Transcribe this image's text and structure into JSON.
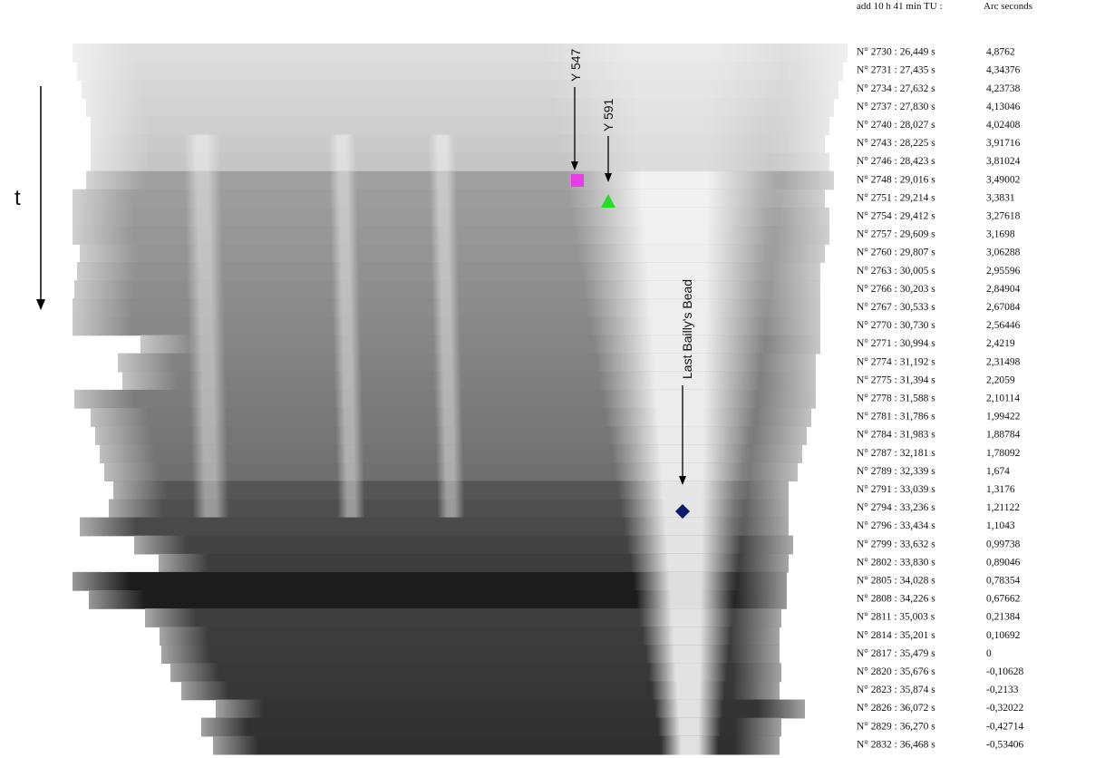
{
  "header": {
    "time_label": "add 10 h 41 min TU :",
    "arc_label": "Arc seconds"
  },
  "annotations": {
    "time_axis": "t",
    "labels": [
      "Y 547",
      "Y 591",
      "Last Bailly's Bead"
    ]
  },
  "table": {
    "rows": [
      [
        "N° 2730 : 26,449 s",
        "4,8762"
      ],
      [
        "N° 2731 : 27,435 s",
        "4,34376"
      ],
      [
        "N° 2734 : 27,632 s",
        "4,23738"
      ],
      [
        "N° 2737 : 27,830 s",
        "4,13046"
      ],
      [
        "N° 2740 : 28,027 s",
        "4,02408"
      ],
      [
        "N° 2743 : 28,225 s",
        "3,91716"
      ],
      [
        "N° 2746 : 28,423 s",
        "3,81024"
      ],
      [
        "N° 2748 : 29,016 s",
        "3,49002"
      ],
      [
        "N° 2751 : 29,214 s",
        "3,3831"
      ],
      [
        "N° 2754 : 29,412 s",
        "3,27618"
      ],
      [
        "N° 2757 : 29,609 s",
        "3,1698"
      ],
      [
        "N° 2760 : 29,807 s",
        "3,06288"
      ],
      [
        "N° 2763 : 30,005 s",
        "2,95596"
      ],
      [
        "N° 2766 : 30,203 s",
        "2,84904"
      ],
      [
        "N° 2767 : 30,533 s",
        "2,67084"
      ],
      [
        "N° 2770 : 30,730 s",
        "2,56446"
      ],
      [
        "N° 2771 : 30,994 s",
        "2,4219"
      ],
      [
        "N° 2774 : 31,192 s",
        "2,31498"
      ],
      [
        "N° 2775 : 31,394 s",
        "2,2059"
      ],
      [
        "N° 2778 : 31,588 s",
        "2,10114"
      ],
      [
        "N° 2781 : 31,786 s",
        "1,99422"
      ],
      [
        "N° 2784 : 31,983 s",
        "1,88784"
      ],
      [
        "N° 2787 : 32,181 s",
        "1,78092"
      ],
      [
        "N° 2789 : 32,339 s",
        "1,674"
      ],
      [
        "N° 2791 : 33,039 s",
        "1,3176"
      ],
      [
        "N° 2794 : 33,236 s",
        "1,21122"
      ],
      [
        "N° 2796 : 33,434 s",
        "1,1043"
      ],
      [
        "N° 2799 : 33,632 s",
        "0,99738"
      ],
      [
        "N° 2802 : 33,830 s",
        "0,89046"
      ],
      [
        "N° 2805 : 34,028 s",
        "0,78354"
      ],
      [
        "N° 2808 : 34,226 s",
        "0,67662"
      ],
      [
        "N° 2811 : 35,003 s",
        "0,21384"
      ],
      [
        "N° 2814 : 35,201 s",
        "0,10692"
      ],
      [
        "N° 2817 : 35,479 s",
        "0"
      ],
      [
        "N° 2820 : 35,676 s",
        "-0,10628"
      ],
      [
        "N° 2823 : 35,874 s",
        "-0,2133"
      ],
      [
        "N° 2826 : 36,072 s",
        "-0,32022"
      ],
      [
        "N° 2829 : 36,270 s",
        "-0,42714"
      ],
      [
        "N° 2832 : 36,468 s",
        "-0,53406"
      ]
    ]
  }
}
